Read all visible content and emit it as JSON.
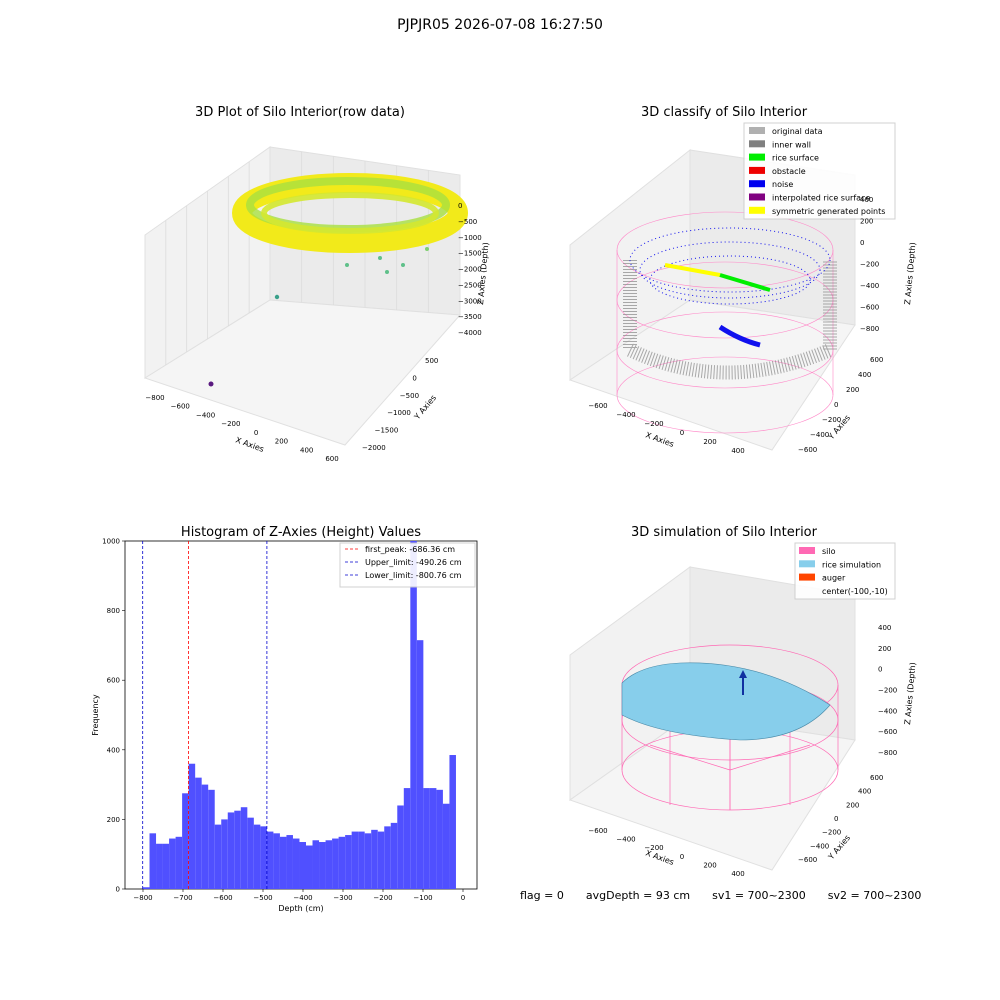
{
  "suptitle": "PJPJR05 2026-07-08 16:27:50",
  "panels": {
    "raw": {
      "title": "3D Plot of Silo Interior(row data)",
      "xlabel": "X Axies",
      "ylabel": "Y Axies",
      "zlabel": "Z Axies (Depth)",
      "xticks": [
        "−800",
        "−600",
        "−400",
        "−200",
        "0",
        "200",
        "400",
        "600"
      ],
      "yticks": [
        "500",
        "0",
        "−500",
        "−1000",
        "−1500",
        "−2000"
      ],
      "zticks": [
        "0",
        "−500",
        "−1000",
        "−1500",
        "−2000",
        "−2500",
        "−3000",
        "−3500",
        "−4000"
      ]
    },
    "classify": {
      "title": "3D classify of Silo Interior",
      "xlabel": "X Axies",
      "ylabel": "Y Axies",
      "zlabel": "Z Axies (Depth)",
      "xticks": [
        "−600",
        "−400",
        "−200",
        "0",
        "200",
        "400"
      ],
      "yticks": [
        "600",
        "400",
        "200",
        "0",
        "−200",
        "−400",
        "−600"
      ],
      "zticks": [
        "400",
        "200",
        "0",
        "−200",
        "−400",
        "−600",
        "−800"
      ],
      "legend": [
        {
          "label": "original data",
          "color": "#b0b0b0"
        },
        {
          "label": "inner wall",
          "color": "#808080"
        },
        {
          "label": "rice surface",
          "color": "#00ee00"
        },
        {
          "label": "obstacle",
          "color": "#ee0000"
        },
        {
          "label": "noise",
          "color": "#0000ee"
        },
        {
          "label": "interpolated rice surface",
          "color": "#800080"
        },
        {
          "label": "symmetric generated points",
          "color": "#ffff00"
        }
      ]
    },
    "simulation": {
      "title": "3D simulation of Silo Interior",
      "xlabel": "X Axies",
      "ylabel": "Y Axies",
      "zlabel": "Z Axies (Depth)",
      "xticks": [
        "−600",
        "−400",
        "−200",
        "0",
        "200",
        "400"
      ],
      "yticks": [
        "600",
        "400",
        "200",
        "0",
        "−200",
        "−400",
        "−600"
      ],
      "zticks": [
        "400",
        "200",
        "0",
        "−200",
        "−400",
        "−600",
        "−800"
      ],
      "legend": [
        {
          "label": "silo",
          "color": "#ff69b4"
        },
        {
          "label": "rice simulation",
          "color": "#87ceeb"
        },
        {
          "label": "auger",
          "color": "#ff4500"
        },
        {
          "label": "center(-100,-10)",
          "color": ""
        }
      ]
    }
  },
  "chart_data": {
    "type": "bar",
    "title": "Histogram of Z-Axies (Height) Values",
    "xlabel": "Depth (cm)",
    "ylabel": "Frequency",
    "xlim": [
      -845,
      35
    ],
    "ylim": [
      0,
      1000
    ],
    "xticks": [
      -800,
      -700,
      -600,
      -500,
      -400,
      -300,
      -200,
      -100,
      0
    ],
    "yticks": [
      0,
      200,
      400,
      600,
      800,
      1000
    ],
    "bin_start": -800,
    "bin_width": 16.3,
    "values": [
      5,
      160,
      130,
      130,
      145,
      150,
      275,
      360,
      320,
      300,
      285,
      185,
      200,
      220,
      225,
      235,
      205,
      185,
      180,
      165,
      160,
      150,
      155,
      145,
      135,
      125,
      140,
      135,
      140,
      145,
      150,
      155,
      165,
      165,
      160,
      170,
      165,
      180,
      190,
      240,
      290,
      1000,
      715,
      290,
      290,
      285,
      245,
      385
    ],
    "lines": [
      {
        "label": "first_peak: -686.36 cm",
        "x": -686.36,
        "color": "#ff0000"
      },
      {
        "label": "Upper_limit: -490.26 cm",
        "x": -490.26,
        "color": "#0000cc"
      },
      {
        "label": "Lower_limit: -800.76 cm",
        "x": -800.76,
        "color": "#0000cc"
      }
    ]
  },
  "footer": {
    "flag": "flag = 0",
    "avg": "avgDepth = 93 cm",
    "sv1": "sv1 = 700~2300",
    "sv2": "sv2 = 700~2300"
  }
}
